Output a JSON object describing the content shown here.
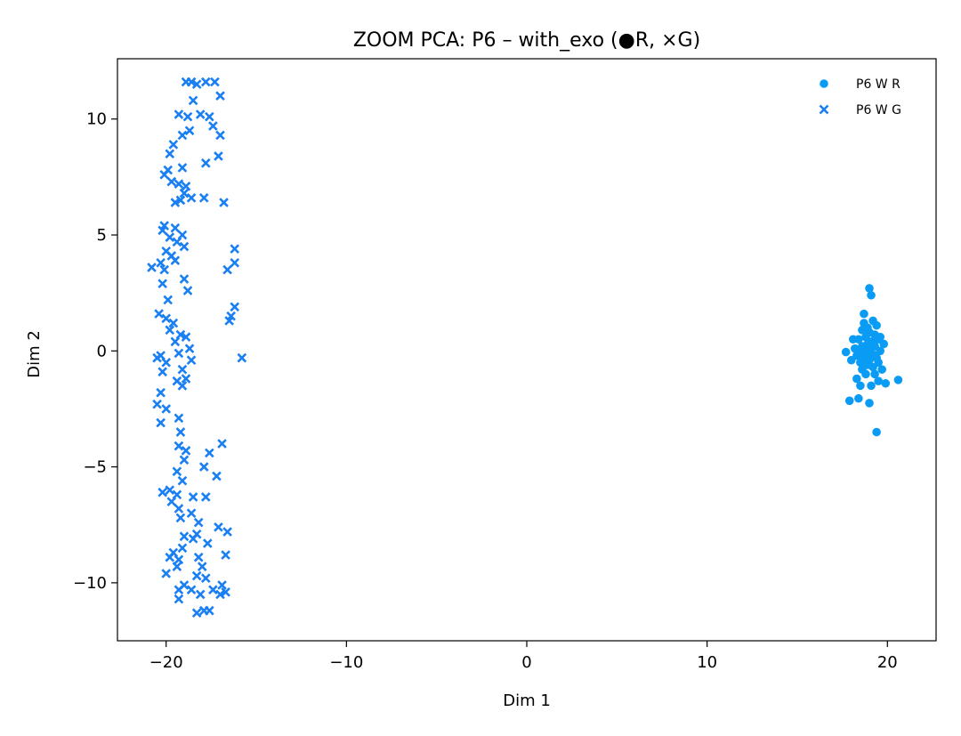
{
  "chart_data": {
    "type": "scatter",
    "title": "ZOOM PCA: P6 – with_exo (●R, ×G)",
    "xlabel": "Dim 1",
    "ylabel": "Dim 2",
    "xlim": [
      -22.7,
      22.7
    ],
    "ylim": [
      -12.5,
      12.6
    ],
    "xticks": [
      -20,
      -10,
      0,
      10,
      20
    ],
    "xtick_labels": [
      "−20",
      "−10",
      "0",
      "10",
      "20"
    ],
    "yticks": [
      -10,
      -5,
      0,
      5,
      10
    ],
    "ytick_labels": [
      "−10",
      "−5",
      "0",
      "5",
      "10"
    ],
    "grid": false,
    "legend_placement": "top-right",
    "series": [
      {
        "name": "P6 W R",
        "marker": "circle",
        "color": "#0a9cf5",
        "points": [
          [
            19.0,
            2.7
          ],
          [
            19.1,
            2.4
          ],
          [
            18.7,
            1.6
          ],
          [
            19.2,
            1.3
          ],
          [
            19.4,
            1.1
          ],
          [
            18.9,
            1.0
          ],
          [
            18.6,
            0.9
          ],
          [
            19.0,
            0.8
          ],
          [
            19.3,
            0.7
          ],
          [
            18.8,
            0.6
          ],
          [
            19.5,
            0.5
          ],
          [
            18.4,
            0.5
          ],
          [
            19.1,
            0.4
          ],
          [
            18.9,
            0.3
          ],
          [
            18.6,
            0.2
          ],
          [
            19.3,
            0.2
          ],
          [
            18.2,
            0.1
          ],
          [
            19.0,
            0.1
          ],
          [
            18.5,
            0.0
          ],
          [
            19.6,
            0.0
          ],
          [
            17.7,
            -0.05
          ],
          [
            18.8,
            -0.1
          ],
          [
            19.2,
            -0.15
          ],
          [
            18.3,
            -0.2
          ],
          [
            18.7,
            -0.3
          ],
          [
            19.4,
            -0.3
          ],
          [
            19.0,
            -0.4
          ],
          [
            18.5,
            -0.5
          ],
          [
            18.9,
            -0.6
          ],
          [
            19.2,
            -0.7
          ],
          [
            18.6,
            -0.8
          ],
          [
            19.7,
            -0.8
          ],
          [
            18.8,
            -1.0
          ],
          [
            19.3,
            -1.0
          ],
          [
            18.3,
            -1.2
          ],
          [
            19.5,
            -1.3
          ],
          [
            18.5,
            -1.5
          ],
          [
            19.1,
            -1.5
          ],
          [
            19.9,
            -1.4
          ],
          [
            20.6,
            -1.25
          ],
          [
            17.9,
            -2.15
          ],
          [
            18.4,
            -2.05
          ],
          [
            19.0,
            -2.25
          ],
          [
            19.4,
            -3.5
          ],
          [
            18.1,
            0.5
          ],
          [
            19.6,
            0.6
          ],
          [
            18.0,
            -0.4
          ],
          [
            19.8,
            0.3
          ],
          [
            18.7,
            1.2
          ],
          [
            19.5,
            -0.5
          ]
        ]
      },
      {
        "name": "P6 W G",
        "marker": "x",
        "color": "#1a7ff2",
        "points": [
          [
            -18.9,
            11.6
          ],
          [
            -18.6,
            11.6
          ],
          [
            -18.3,
            11.5
          ],
          [
            -17.8,
            11.6
          ],
          [
            -17.3,
            11.6
          ],
          [
            -17.0,
            11.0
          ],
          [
            -18.5,
            10.8
          ],
          [
            -19.3,
            10.2
          ],
          [
            -18.8,
            10.1
          ],
          [
            -18.1,
            10.2
          ],
          [
            -17.6,
            10.1
          ],
          [
            -17.4,
            9.7
          ],
          [
            -18.7,
            9.5
          ],
          [
            -19.1,
            9.3
          ],
          [
            -17.0,
            9.3
          ],
          [
            -19.6,
            8.9
          ],
          [
            -19.8,
            8.5
          ],
          [
            -17.8,
            8.1
          ],
          [
            -17.1,
            8.4
          ],
          [
            -19.1,
            7.9
          ],
          [
            -19.9,
            7.8
          ],
          [
            -20.1,
            7.6
          ],
          [
            -19.7,
            7.3
          ],
          [
            -19.3,
            7.2
          ],
          [
            -18.9,
            7.1
          ],
          [
            -19.0,
            6.8
          ],
          [
            -18.6,
            6.6
          ],
          [
            -19.2,
            6.5
          ],
          [
            -19.5,
            6.4
          ],
          [
            -17.9,
            6.6
          ],
          [
            -16.8,
            6.4
          ],
          [
            -20.1,
            5.4
          ],
          [
            -20.2,
            5.2
          ],
          [
            -19.5,
            5.3
          ],
          [
            -19.1,
            5.0
          ],
          [
            -19.8,
            4.9
          ],
          [
            -19.4,
            4.7
          ],
          [
            -19.0,
            4.5
          ],
          [
            -16.2,
            4.4
          ],
          [
            -20.0,
            4.3
          ],
          [
            -19.7,
            4.1
          ],
          [
            -20.3,
            3.8
          ],
          [
            -20.1,
            3.5
          ],
          [
            -19.5,
            3.9
          ],
          [
            -16.2,
            3.8
          ],
          [
            -16.6,
            3.5
          ],
          [
            -20.8,
            3.6
          ],
          [
            -20.2,
            2.9
          ],
          [
            -19.0,
            3.1
          ],
          [
            -18.8,
            2.6
          ],
          [
            -19.9,
            2.2
          ],
          [
            -16.2,
            1.9
          ],
          [
            -20.4,
            1.6
          ],
          [
            -20.0,
            1.4
          ],
          [
            -19.6,
            1.2
          ],
          [
            -16.5,
            1.3
          ],
          [
            -16.4,
            1.5
          ],
          [
            -19.8,
            0.9
          ],
          [
            -19.2,
            0.7
          ],
          [
            -18.9,
            0.6
          ],
          [
            -19.5,
            0.4
          ],
          [
            -18.7,
            0.1
          ],
          [
            -19.3,
            -0.1
          ],
          [
            -20.3,
            -0.2
          ],
          [
            -20.5,
            -0.3
          ],
          [
            -20.0,
            -0.5
          ],
          [
            -15.8,
            -0.3
          ],
          [
            -18.6,
            -0.4
          ],
          [
            -19.1,
            -0.8
          ],
          [
            -20.2,
            -0.9
          ],
          [
            -18.9,
            -1.2
          ],
          [
            -19.4,
            -1.3
          ],
          [
            -19.1,
            -1.5
          ],
          [
            -20.3,
            -1.8
          ],
          [
            -20.5,
            -2.3
          ],
          [
            -20.0,
            -2.5
          ],
          [
            -19.3,
            -2.9
          ],
          [
            -20.3,
            -3.1
          ],
          [
            -19.2,
            -3.5
          ],
          [
            -19.3,
            -4.1
          ],
          [
            -18.9,
            -4.3
          ],
          [
            -19.0,
            -4.7
          ],
          [
            -17.6,
            -4.4
          ],
          [
            -16.9,
            -4.0
          ],
          [
            -17.9,
            -5.0
          ],
          [
            -19.4,
            -5.2
          ],
          [
            -17.2,
            -5.4
          ],
          [
            -19.1,
            -5.6
          ],
          [
            -20.2,
            -6.1
          ],
          [
            -19.8,
            -6.0
          ],
          [
            -19.4,
            -6.2
          ],
          [
            -18.5,
            -6.3
          ],
          [
            -17.8,
            -6.3
          ],
          [
            -19.7,
            -6.5
          ],
          [
            -19.3,
            -6.8
          ],
          [
            -18.6,
            -7.0
          ],
          [
            -19.2,
            -7.2
          ],
          [
            -18.2,
            -7.4
          ],
          [
            -17.1,
            -7.6
          ],
          [
            -16.6,
            -7.8
          ],
          [
            -18.3,
            -7.9
          ],
          [
            -19.0,
            -8.0
          ],
          [
            -18.5,
            -8.1
          ],
          [
            -17.7,
            -8.3
          ],
          [
            -19.1,
            -8.5
          ],
          [
            -19.6,
            -8.7
          ],
          [
            -19.8,
            -8.9
          ],
          [
            -19.3,
            -9.0
          ],
          [
            -18.2,
            -8.9
          ],
          [
            -16.7,
            -8.8
          ],
          [
            -18.0,
            -9.3
          ],
          [
            -19.4,
            -9.3
          ],
          [
            -20.0,
            -9.6
          ],
          [
            -18.3,
            -9.7
          ],
          [
            -17.8,
            -9.8
          ],
          [
            -19.0,
            -10.1
          ],
          [
            -19.3,
            -10.3
          ],
          [
            -18.6,
            -10.3
          ],
          [
            -17.4,
            -10.3
          ],
          [
            -16.9,
            -10.1
          ],
          [
            -18.1,
            -10.5
          ],
          [
            -17.0,
            -10.5
          ],
          [
            -16.7,
            -10.4
          ],
          [
            -19.3,
            -10.7
          ],
          [
            -17.9,
            -11.2
          ],
          [
            -18.3,
            -11.3
          ],
          [
            -17.6,
            -11.2
          ]
        ]
      }
    ]
  }
}
